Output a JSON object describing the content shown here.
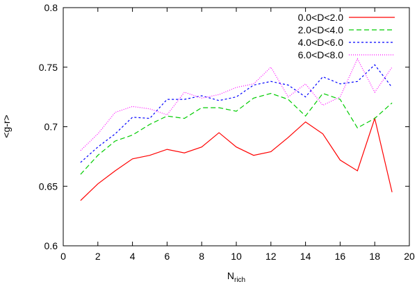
{
  "chart_data": {
    "type": "line",
    "xlabel": "N",
    "xlabel_sub": "rich",
    "ylabel": "<g-r>",
    "xlim": [
      0,
      20
    ],
    "ylim": [
      0.6,
      0.8
    ],
    "xticks": [
      0,
      2,
      4,
      6,
      8,
      10,
      12,
      14,
      16,
      18,
      20
    ],
    "xtick_labels": [
      "0",
      "2",
      "4",
      "6",
      "8",
      "10",
      "12",
      "14",
      "16",
      "18",
      "20"
    ],
    "yticks": [
      0.6,
      0.65,
      0.7,
      0.75,
      0.8
    ],
    "ytick_labels": [
      "0.6",
      "0.65",
      "0.7",
      "0.75",
      "0.8"
    ],
    "grid": false,
    "legend_position": "top-right",
    "x": [
      1,
      2,
      3,
      4,
      5,
      6,
      7,
      8,
      9,
      10,
      11,
      12,
      13,
      14,
      15,
      16,
      17,
      18,
      19
    ],
    "series": [
      {
        "name": "0.0<D<2.0",
        "color": "#ff0000",
        "dash": "solid",
        "values": [
          0.638,
          0.652,
          0.663,
          0.673,
          0.676,
          0.681,
          0.678,
          0.683,
          0.695,
          0.683,
          0.676,
          0.679,
          0.691,
          0.704,
          0.694,
          0.672,
          0.663,
          0.707,
          0.645
        ]
      },
      {
        "name": "2.0<D<4.0",
        "color": "#00cc00",
        "dash": "long-dash",
        "values": [
          0.66,
          0.676,
          0.688,
          0.693,
          0.702,
          0.709,
          0.707,
          0.716,
          0.716,
          0.713,
          0.724,
          0.728,
          0.723,
          0.709,
          0.728,
          0.723,
          0.699,
          0.707,
          0.72
        ]
      },
      {
        "name": "4.0<D<6.0",
        "color": "#0000ff",
        "dash": "short-dash",
        "values": [
          0.67,
          0.683,
          0.694,
          0.708,
          0.707,
          0.723,
          0.723,
          0.726,
          0.722,
          0.725,
          0.735,
          0.738,
          0.735,
          0.725,
          0.742,
          0.736,
          0.738,
          0.752,
          0.733
        ]
      },
      {
        "name": "6.0<D<8.0",
        "color": "#ff00ff",
        "dash": "dotted",
        "values": [
          0.68,
          0.694,
          0.712,
          0.717,
          0.715,
          0.71,
          0.729,
          0.724,
          0.727,
          0.733,
          0.736,
          0.75,
          0.725,
          0.736,
          0.718,
          0.725,
          0.757,
          0.729,
          0.75
        ]
      }
    ]
  }
}
